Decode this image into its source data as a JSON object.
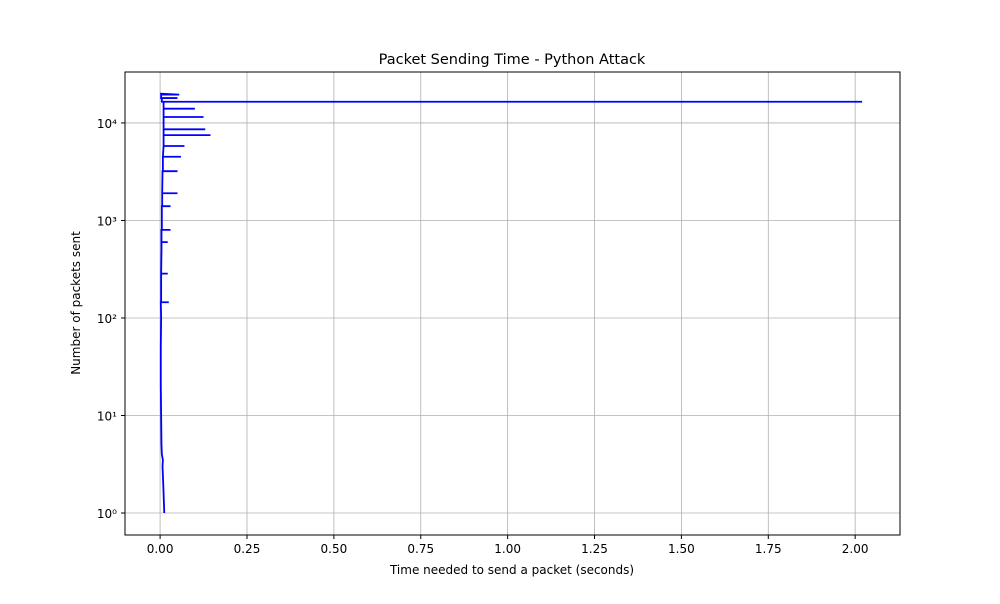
{
  "chart_data": {
    "type": "line",
    "title": "Packet Sending Time - Python Attack",
    "x_label": "Time needed to send a packet (seconds)",
    "y_label": "Number of packets sent",
    "color": "#0000ff",
    "x": [
      0.012,
      0.009,
      0.007,
      0.008,
      0.005,
      0.004,
      0.003,
      0.002,
      0.002,
      0.003,
      0.002,
      0.025,
      0.003,
      0.003,
      0.022,
      0.003,
      0.004,
      0.004,
      0.022,
      0.004,
      0.004,
      0.03,
      0.005,
      0.005,
      0.03,
      0.006,
      0.006,
      0.05,
      0.006,
      0.007,
      0.05,
      0.008,
      0.008,
      0.06,
      0.008,
      0.01,
      0.07,
      0.01,
      0.01,
      0.145,
      0.01,
      0.01,
      0.13,
      0.01,
      0.01,
      0.125,
      0.01,
      0.01,
      0.1,
      0.01,
      0.01,
      0.1,
      2.02,
      0.005,
      0.005,
      0.05,
      0.003,
      0.003,
      0.055,
      0.0
    ],
    "values": [
      1,
      2,
      3,
      3.5,
      4,
      5,
      10,
      20,
      50,
      100,
      145,
      145,
      145,
      285,
      285,
      285,
      500,
      600,
      600,
      600,
      800,
      800,
      800,
      1400,
      1400,
      1400,
      1900,
      1900,
      1900,
      3200,
      3200,
      3200,
      4500,
      4500,
      4500,
      5800,
      5800,
      5800,
      7500,
      7500,
      7500,
      8600,
      8600,
      8600,
      11500,
      11500,
      11500,
      14000,
      14000,
      14000,
      16500,
      16500,
      16500,
      16500,
      18000,
      18000,
      18000,
      19500,
      19500,
      20000
    ],
    "xlim": [
      -0.101,
      2.129
    ],
    "ylim": [
      0.595,
      33300
    ],
    "xticks": [
      {
        "value": 0,
        "label": "0.00"
      },
      0.25,
      {
        "value": 0.5,
        "label": "0.50"
      },
      0.75,
      {
        "value": 1,
        "label": "1.00"
      },
      1.25,
      {
        "value": 1.5,
        "label": "1.50"
      },
      1.75,
      {
        "value": 2,
        "label": "2.00"
      }
    ],
    "yticks": [
      {
        "value": 1,
        "label": "10⁰"
      },
      {
        "value": 10,
        "label": "10¹"
      },
      {
        "value": 100,
        "label": "10²"
      },
      {
        "value": 1000,
        "label": "10³"
      },
      {
        "value": 10000,
        "label": "10⁴"
      }
    ],
    "ylog": true,
    "grid": true
  }
}
